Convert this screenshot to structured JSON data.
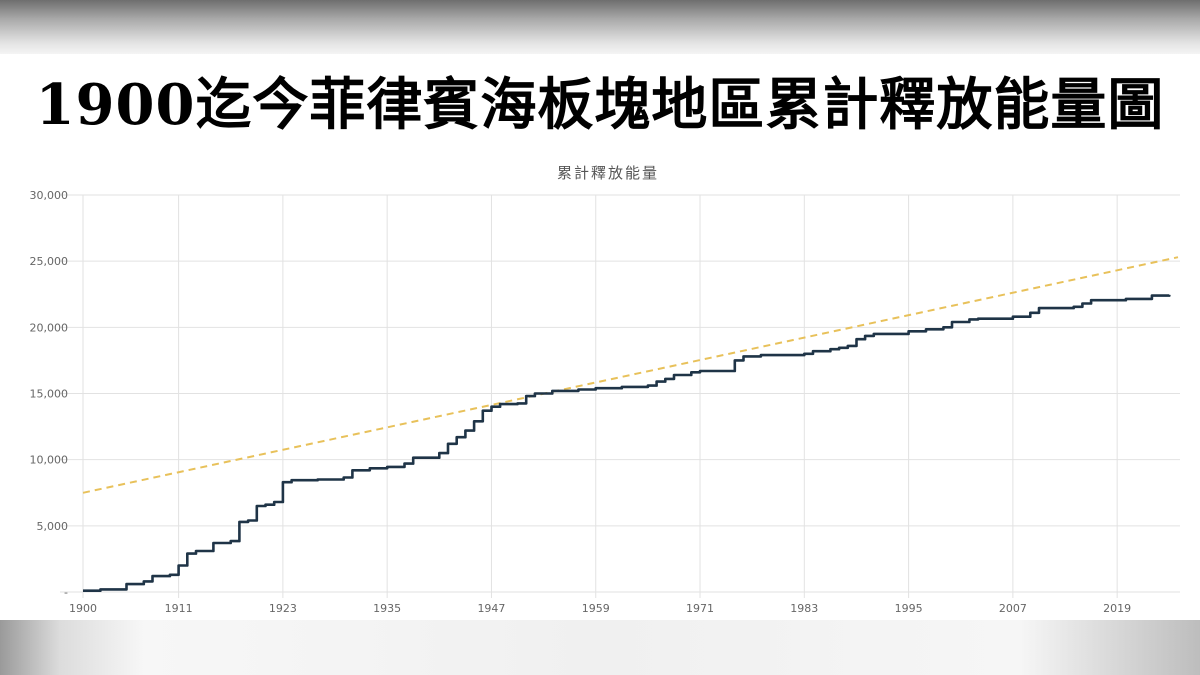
{
  "banner": {
    "title": "1900迄今菲律賓海板塊地區累計釋放能量圖"
  },
  "chart_data": {
    "type": "line",
    "title": "累計釋放能量",
    "xlabel": "",
    "ylabel": "",
    "xlim": [
      1900,
      2026
    ],
    "ylim": [
      0,
      30000
    ],
    "x_ticks": [
      1900,
      1911,
      1923,
      1935,
      1947,
      1959,
      1971,
      1983,
      1995,
      2007,
      2019
    ],
    "y_ticks": [
      0,
      5000,
      10000,
      15000,
      20000,
      25000,
      30000
    ],
    "y_tick_labels": [
      "-",
      "5,000",
      "10,000",
      "15,000",
      "20,000",
      "25,000",
      "30,000"
    ],
    "grid": true,
    "legend": "none",
    "colors": {
      "series": "#1f3447",
      "trend": "#e8c15a",
      "grid": "#e2e2e2"
    },
    "series": [
      {
        "style": "solid step line",
        "x": [
          1900,
          1902,
          1903,
          1905,
          1907,
          1908,
          1910,
          1911,
          1912,
          1913,
          1915,
          1917,
          1918,
          1919,
          1920,
          1921,
          1922,
          1923,
          1924,
          1927,
          1930,
          1931,
          1933,
          1935,
          1937,
          1938,
          1941,
          1942,
          1943,
          1944,
          1945,
          1946,
          1947,
          1948,
          1950,
          1951,
          1952,
          1954,
          1957,
          1959,
          1962,
          1965,
          1966,
          1967,
          1968,
          1970,
          1971,
          1975,
          1976,
          1978,
          1983,
          1984,
          1986,
          1987,
          1988,
          1989,
          1990,
          1991,
          1995,
          1997,
          1999,
          2000,
          2002,
          2003,
          2007,
          2009,
          2010,
          2014,
          2015,
          2016,
          2020,
          2023,
          2025
        ],
        "values": [
          100,
          200,
          200,
          600,
          800,
          1200,
          1300,
          2000,
          2900,
          3100,
          3700,
          3850,
          5300,
          5400,
          6500,
          6600,
          6800,
          8300,
          8450,
          8500,
          8650,
          9200,
          9350,
          9450,
          9700,
          10150,
          10500,
          11200,
          11700,
          12200,
          12900,
          13700,
          14000,
          14200,
          14250,
          14800,
          15000,
          15200,
          15300,
          15400,
          15500,
          15600,
          15900,
          16100,
          16400,
          16600,
          16700,
          17500,
          17800,
          17900,
          18000,
          18200,
          18350,
          18450,
          18600,
          19100,
          19350,
          19500,
          19700,
          19850,
          20000,
          20400,
          20600,
          20650,
          20800,
          21100,
          21450,
          21550,
          21800,
          22050,
          22150,
          22400,
          22450
        ]
      },
      {
        "style": "dashed trend line",
        "x": [
          1900,
          2026
        ],
        "values": [
          7500,
          25300
        ]
      }
    ]
  }
}
